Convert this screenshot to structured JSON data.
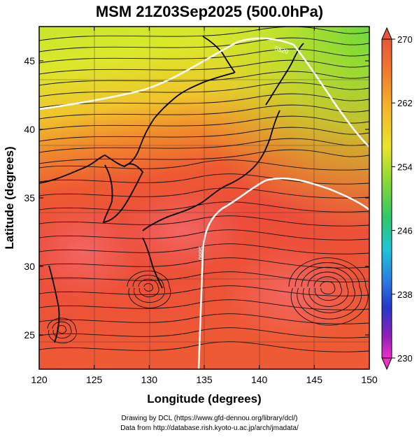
{
  "title": "MSM 21Z03Sep2025 (500.0hPa)",
  "map": {
    "xlabel": "Longitude (degrees)",
    "ylabel": "Latitude  (degrees)",
    "xlim": [
      120,
      150
    ],
    "ylim": [
      22.5,
      47.5
    ],
    "x_ticks": [
      120,
      125,
      130,
      135,
      140,
      145,
      150
    ],
    "y_ticks": [
      25,
      30,
      35,
      40,
      45
    ],
    "contours": [
      {
        "label": "5880",
        "level": 5880
      },
      {
        "label": "5820",
        "level": 5820
      }
    ]
  },
  "colorbar": {
    "ticks": [
      270,
      262,
      254,
      246,
      238,
      230
    ],
    "min": 230,
    "max": 270,
    "colors": {
      "top": "#e8563a",
      "orange": "#f49a2c",
      "yellow": "#f2e22a",
      "green": "#2ec83a",
      "cyan": "#21c4d8",
      "blue": "#2238cc",
      "purple": "#8f1fb8",
      "bottom": "#ee2fc9"
    }
  },
  "footer": {
    "line1": "Drawing by DCL (https://www.gfd-dennou.org/library/dcl/)",
    "line2": "Data from http://database.rish.kyoto-u.ac.jp/arch/jmadata/"
  }
}
